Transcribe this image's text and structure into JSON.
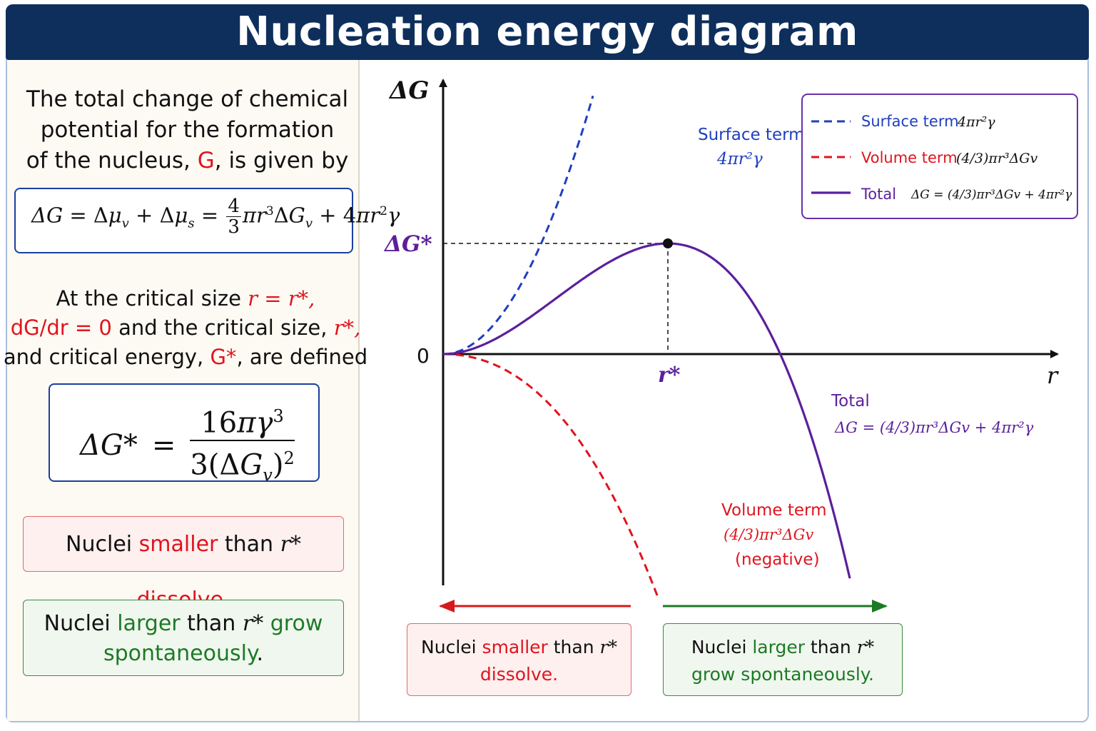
{
  "header": {
    "title": "Nucleation energy diagram"
  },
  "left": {
    "intro_l1": "The total change of chemical",
    "intro_l2": "potential for the formation",
    "intro_l3a": "of the nucleus, ",
    "intro_l3b": "G",
    "intro_l3c": ", is given by",
    "eq1": "ΔG = Δμv + Δμs = 4/3 πr³ΔGv + 4πr²γ",
    "crit_a": "At the critical size ",
    "crit_b": "r = r*,",
    "crit_c": "dG/dr = 0",
    "crit_d": " and the critical size, ",
    "crit_e": "r*,",
    "crit_f": "and critical energy, ",
    "crit_g": "G*",
    "crit_h": ", are defined",
    "eq2": "ΔG* = 16πγ³ / 3(ΔGv)²",
    "box_small": {
      "a": "Nuclei ",
      "b": "smaller",
      "c": " than ",
      "d": "r*",
      "e": " dissolve",
      "f": "."
    },
    "box_large": {
      "a": "Nuclei ",
      "b": "larger",
      "c": " than ",
      "d": "r*",
      "e": " grow",
      "f": "spontaneously",
      "g": "."
    }
  },
  "plot": {
    "y_axis_label": "ΔG",
    "x_axis_label": "r",
    "zero_label": "0",
    "peak_label": "ΔG*",
    "rstar_label": "r*",
    "surface_label": "Surface term",
    "surface_formula": "4πr²γ",
    "total_label": "Total",
    "total_formula": "ΔG = (4/3)πr³ΔGv + 4πr²γ",
    "volume_label": "Volume term",
    "volume_formula": "(4/3)πr³ΔGv",
    "volume_note": "(negative)"
  },
  "legend": {
    "items": [
      {
        "label": "Surface term",
        "formula": "4πr²γ",
        "color": "#1f3fbf",
        "style": "dashed"
      },
      {
        "label": "Volume term",
        "formula": "(4/3)πr³ΔGv",
        "color": "#e0141e",
        "style": "dashed"
      },
      {
        "label": "Total",
        "formula": "ΔG = (4/3)πr³ΔGv + 4πr²γ",
        "color": "#5b1f9c",
        "style": "solid"
      }
    ]
  },
  "bottom": {
    "dissolve": {
      "a": "Nuclei ",
      "b": "smaller",
      "c": " than ",
      "d": "r*",
      "e": "dissolve."
    },
    "grow": {
      "a": "Nuclei ",
      "b": "larger",
      "c": " than ",
      "d": "r*",
      "e": "grow spontaneously."
    }
  },
  "colors": {
    "header": "#0e2f5c",
    "surface": "#1f3fbf",
    "volume": "#e0141e",
    "total": "#5b1f9c",
    "grow": "#1d7a24"
  }
}
